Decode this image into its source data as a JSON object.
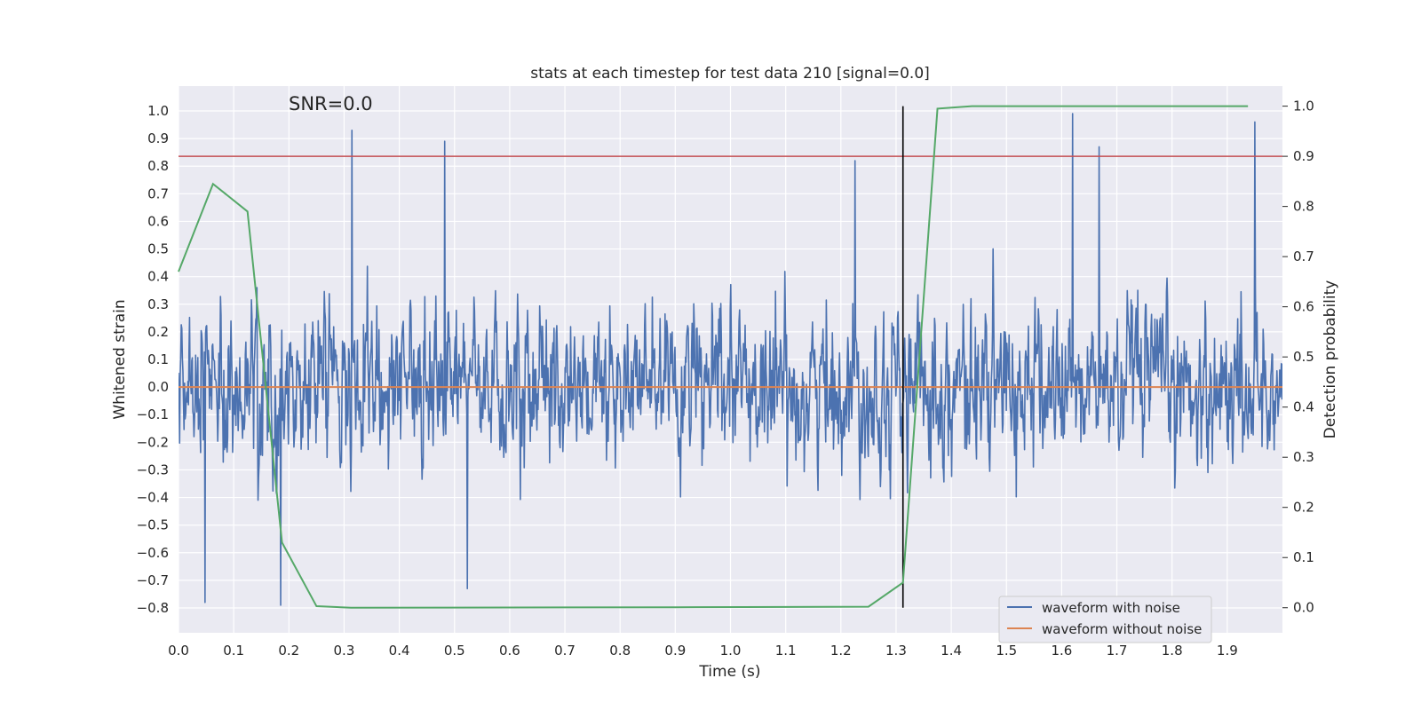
{
  "chart_data": {
    "type": "line",
    "title": "stats at each timestep for test data 210 [signal=0.0]",
    "xlabel": "Time (s)",
    "ylabel": "Whitened strain",
    "ylabel_right": "Detection probability",
    "annotation": "SNR=0.0",
    "xlim": [
      0.0,
      2.0
    ],
    "ylim": [
      -0.89,
      1.09
    ],
    "ylim_right": [
      -0.05,
      1.04
    ],
    "x_ticks": [
      0.0,
      0.1,
      0.2,
      0.3,
      0.4,
      0.5,
      0.6,
      0.7,
      0.8,
      0.9,
      1.0,
      1.1,
      1.2,
      1.3,
      1.4,
      1.5,
      1.6,
      1.7,
      1.8,
      1.9
    ],
    "x_tick_labels": [
      "0.0",
      "0.1",
      "0.2",
      "0.3",
      "0.4",
      "0.5",
      "0.6",
      "0.7",
      "0.8",
      "0.9",
      "1.0",
      "1.1",
      "1.2",
      "1.3",
      "1.4",
      "1.5",
      "1.6",
      "1.7",
      "1.8",
      "1.9"
    ],
    "y_ticks": [
      -0.8,
      -0.7,
      -0.6,
      -0.5,
      -0.4,
      -0.3,
      -0.2,
      -0.1,
      0.0,
      0.1,
      0.2,
      0.3,
      0.4,
      0.5,
      0.6,
      0.7,
      0.8,
      0.9,
      1.0
    ],
    "y_tick_labels": [
      "−0.8",
      "−0.7",
      "−0.6",
      "−0.5",
      "−0.4",
      "−0.3",
      "−0.2",
      "−0.1",
      "0.0",
      "0.1",
      "0.2",
      "0.3",
      "0.4",
      "0.5",
      "0.6",
      "0.7",
      "0.8",
      "0.9",
      "1.0"
    ],
    "y_right_ticks": [
      0.0,
      0.1,
      0.2,
      0.3,
      0.4,
      0.5,
      0.6,
      0.7,
      0.8,
      0.9,
      1.0
    ],
    "y_right_tick_labels": [
      "0.0",
      "0.1",
      "0.2",
      "0.3",
      "0.4",
      "0.5",
      "0.6",
      "0.7",
      "0.8",
      "0.9",
      "1.0"
    ],
    "grid": true,
    "legend_position": "lower-right",
    "series": [
      {
        "name": "waveform with noise",
        "color": "#4c72b0",
        "axis": "left",
        "kind": "noise",
        "sample_count": 2000,
        "notable_peaks": [
          {
            "x": 0.314,
            "y": 0.93
          },
          {
            "x": 0.482,
            "y": 0.89
          },
          {
            "x": 1.226,
            "y": 0.82
          },
          {
            "x": 1.62,
            "y": 0.99
          },
          {
            "x": 1.668,
            "y": 0.87
          },
          {
            "x": 1.95,
            "y": 0.96
          },
          {
            "x": 0.048,
            "y": -0.78
          },
          {
            "x": 0.185,
            "y": -0.79
          },
          {
            "x": 0.523,
            "y": -0.73
          }
        ]
      },
      {
        "name": "waveform without noise",
        "color": "#dd8452",
        "axis": "left",
        "x": [
          0.0,
          2.0
        ],
        "y": [
          0.0,
          0.0
        ]
      },
      {
        "color": "#55a868",
        "axis": "right",
        "x": [
          0.0,
          0.0625,
          0.125,
          0.1875,
          0.25,
          0.3125,
          0.9375,
          1.25,
          1.3125,
          1.375,
          1.4375,
          1.9375
        ],
        "y": [
          0.67,
          0.845,
          0.79,
          0.13,
          0.003,
          0.0,
          0.001,
          0.002,
          0.05,
          0.995,
          1.0,
          1.0
        ]
      }
    ],
    "reference_lines": [
      {
        "orientation": "horizontal",
        "axis": "right",
        "value": 0.9,
        "color": "#c44e52"
      },
      {
        "orientation": "vertical",
        "axis": "right",
        "x": 1.3125,
        "from": 0.0,
        "to": 1.0,
        "color": "#000000"
      }
    ]
  }
}
